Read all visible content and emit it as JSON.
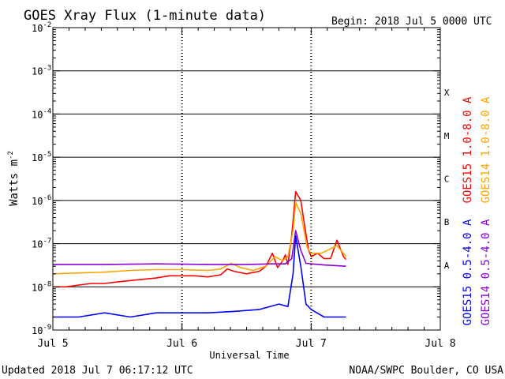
{
  "chart_data": {
    "type": "line",
    "title": "GOES Xray Flux (1-minute data)",
    "begin_label": "Begin:  2018 Jul 5 0000 UTC",
    "xlabel": "Universal Time",
    "ylabel_base": "Watts m",
    "ylabel_exp": "-2",
    "ylim": [
      1e-09,
      0.01
    ],
    "yscale": "log",
    "x_range_days": [
      0,
      3
    ],
    "x_ticks": [
      {
        "day": 0,
        "label": "Jul 5"
      },
      {
        "day": 1,
        "label": "Jul 6"
      },
      {
        "day": 2,
        "label": "Jul 7"
      },
      {
        "day": 3,
        "label": "Jul 8"
      }
    ],
    "y_ticks": [
      {
        "exp": -2,
        "base": "10",
        "sup": "-2"
      },
      {
        "exp": -3,
        "base": "10",
        "sup": "-3"
      },
      {
        "exp": -4,
        "base": "10",
        "sup": "-4"
      },
      {
        "exp": -5,
        "base": "10",
        "sup": "-5"
      },
      {
        "exp": -6,
        "base": "10",
        "sup": "-6"
      },
      {
        "exp": -7,
        "base": "10",
        "sup": "-7"
      },
      {
        "exp": -8,
        "base": "10",
        "sup": "-8"
      },
      {
        "exp": -9,
        "base": "10",
        "sup": "-9"
      }
    ],
    "flare_classes": [
      {
        "label": "X",
        "exp": -3.5
      },
      {
        "label": "M",
        "exp": -4.5
      },
      {
        "label": "C",
        "exp": -5.5
      },
      {
        "label": "B",
        "exp": -6.5
      },
      {
        "label": "A",
        "exp": -7.5
      }
    ],
    "grid": "horizontal",
    "series": [
      {
        "name": "GOES15 1.0-8.0 A",
        "color": "#ff0000",
        "points": [
          [
            0,
            1e-08
          ],
          [
            0.1,
            1e-08
          ],
          [
            0.2,
            1.1e-08
          ],
          [
            0.3,
            1.2e-08
          ],
          [
            0.4,
            1.2e-08
          ],
          [
            0.5,
            1.3e-08
          ],
          [
            0.6,
            1.4e-08
          ],
          [
            0.7,
            1.5e-08
          ],
          [
            0.8,
            1.6e-08
          ],
          [
            0.9,
            1.8e-08
          ],
          [
            1.0,
            1.8e-08
          ],
          [
            1.1,
            1.8e-08
          ],
          [
            1.2,
            1.7e-08
          ],
          [
            1.3,
            1.9e-08
          ],
          [
            1.35,
            2.6e-08
          ],
          [
            1.4,
            2.3e-08
          ],
          [
            1.5,
            2e-08
          ],
          [
            1.6,
            2.3e-08
          ],
          [
            1.65,
            3e-08
          ],
          [
            1.7,
            6e-08
          ],
          [
            1.74,
            2.8e-08
          ],
          [
            1.78,
            4e-08
          ],
          [
            1.8,
            5.5e-08
          ],
          [
            1.82,
            3.3e-08
          ],
          [
            1.85,
            1.6e-07
          ],
          [
            1.88,
            1.6e-06
          ],
          [
            1.92,
            1e-06
          ],
          [
            1.95,
            2.5e-07
          ],
          [
            1.98,
            7e-08
          ],
          [
            2.0,
            5e-08
          ],
          [
            2.05,
            6e-08
          ],
          [
            2.1,
            4.5e-08
          ],
          [
            2.15,
            4.5e-08
          ],
          [
            2.2,
            1.2e-07
          ],
          [
            2.25,
            5e-08
          ],
          [
            2.27,
            4.3e-08
          ]
        ]
      },
      {
        "name": "GOES14 1.0-8.0 A",
        "color": "#ffa500",
        "points": [
          [
            0,
            2e-08
          ],
          [
            0.2,
            2.1e-08
          ],
          [
            0.4,
            2.2e-08
          ],
          [
            0.6,
            2.4e-08
          ],
          [
            0.8,
            2.5e-08
          ],
          [
            1.0,
            2.5e-08
          ],
          [
            1.2,
            2.4e-08
          ],
          [
            1.3,
            2.6e-08
          ],
          [
            1.38,
            3.5e-08
          ],
          [
            1.45,
            2.8e-08
          ],
          [
            1.55,
            2.4e-08
          ],
          [
            1.65,
            3e-08
          ],
          [
            1.72,
            5e-08
          ],
          [
            1.78,
            4e-08
          ],
          [
            1.82,
            5e-08
          ],
          [
            1.86,
            2e-07
          ],
          [
            1.88,
            9e-07
          ],
          [
            1.92,
            5e-07
          ],
          [
            1.97,
            8e-08
          ],
          [
            2.0,
            6e-08
          ],
          [
            2.08,
            6e-08
          ],
          [
            2.2,
            9e-08
          ],
          [
            2.27,
            5e-08
          ]
        ]
      },
      {
        "name": "GOES14 0.5-4.0 A",
        "color": "#8a00d4",
        "points": [
          [
            0,
            3.3e-08
          ],
          [
            0.4,
            3.3e-08
          ],
          [
            0.8,
            3.4e-08
          ],
          [
            1.2,
            3.3e-08
          ],
          [
            1.5,
            3.3e-08
          ],
          [
            1.7,
            3.4e-08
          ],
          [
            1.8,
            3.4e-08
          ],
          [
            1.85,
            4.5e-08
          ],
          [
            1.88,
            2e-07
          ],
          [
            1.92,
            7e-08
          ],
          [
            1.96,
            3.5e-08
          ],
          [
            2.1,
            3.2e-08
          ],
          [
            2.27,
            3e-08
          ]
        ]
      },
      {
        "name": "GOES15 0.5-4.0 A",
        "color": "#0000ff",
        "points": [
          [
            0,
            2e-09
          ],
          [
            0.2,
            2e-09
          ],
          [
            0.4,
            2.5e-09
          ],
          [
            0.6,
            2e-09
          ],
          [
            0.8,
            2.5e-09
          ],
          [
            1.0,
            2.5e-09
          ],
          [
            1.2,
            2.5e-09
          ],
          [
            1.4,
            2.7e-09
          ],
          [
            1.6,
            3e-09
          ],
          [
            1.75,
            4e-09
          ],
          [
            1.82,
            3.5e-09
          ],
          [
            1.86,
            2e-08
          ],
          [
            1.88,
            1.5e-07
          ],
          [
            1.92,
            3e-08
          ],
          [
            1.96,
            4e-09
          ],
          [
            2.0,
            3e-09
          ],
          [
            2.1,
            2e-09
          ],
          [
            2.27,
            2e-09
          ]
        ]
      }
    ],
    "legend_placement": "right"
  },
  "footer": {
    "updated": "Updated 2018 Jul  7 06:17:12 UTC",
    "source": "NOAA/SWPC Boulder, CO USA"
  }
}
